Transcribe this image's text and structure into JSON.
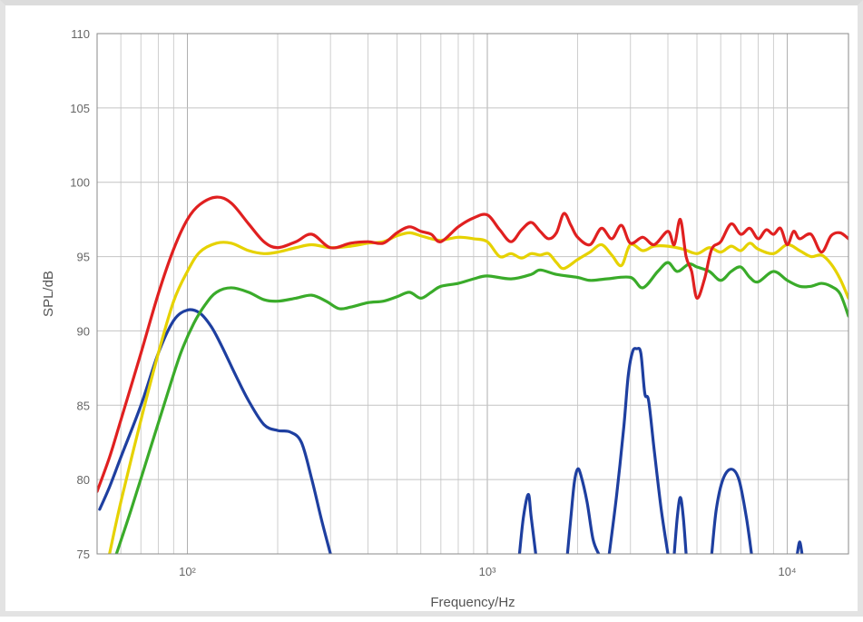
{
  "chart_data": {
    "type": "line",
    "title": "",
    "xlabel": "Frequency/Hz",
    "ylabel": "SPL/dB",
    "x_scale": "log",
    "xlim": [
      50,
      16000
    ],
    "ylim": [
      75,
      110
    ],
    "y_ticks": [
      75,
      80,
      85,
      90,
      95,
      100,
      105,
      110
    ],
    "y_tick_labels": [
      "75",
      "80",
      "85",
      "90",
      "95",
      "100",
      "105",
      "110"
    ],
    "x_major_ticks": [
      100,
      1000,
      10000
    ],
    "x_tick_labels": [
      "10²",
      "10³",
      "10⁴"
    ],
    "grid": true,
    "legend": "none",
    "series": [
      {
        "color": "#e02020",
        "points": [
          [
            50,
            79.2
          ],
          [
            55,
            81.5
          ],
          [
            60,
            84
          ],
          [
            70,
            88.5
          ],
          [
            80,
            92.5
          ],
          [
            90,
            95.5
          ],
          [
            100,
            97.5
          ],
          [
            110,
            98.5
          ],
          [
            125,
            99
          ],
          [
            140,
            98.6
          ],
          [
            160,
            97.2
          ],
          [
            180,
            96
          ],
          [
            200,
            95.6
          ],
          [
            230,
            96
          ],
          [
            260,
            96.5
          ],
          [
            300,
            95.6
          ],
          [
            350,
            95.9
          ],
          [
            400,
            96
          ],
          [
            450,
            95.9
          ],
          [
            500,
            96.6
          ],
          [
            550,
            97
          ],
          [
            600,
            96.7
          ],
          [
            650,
            96.5
          ],
          [
            700,
            96
          ],
          [
            800,
            97
          ],
          [
            900,
            97.6
          ],
          [
            1000,
            97.8
          ],
          [
            1100,
            96.8
          ],
          [
            1200,
            96
          ],
          [
            1300,
            96.8
          ],
          [
            1400,
            97.3
          ],
          [
            1500,
            96.7
          ],
          [
            1600,
            96.2
          ],
          [
            1700,
            96.6
          ],
          [
            1800,
            97.9
          ],
          [
            1900,
            97.1
          ],
          [
            2000,
            96.3
          ],
          [
            2200,
            95.8
          ],
          [
            2400,
            96.9
          ],
          [
            2600,
            96.2
          ],
          [
            2800,
            97.1
          ],
          [
            3000,
            95.9
          ],
          [
            3300,
            96.3
          ],
          [
            3600,
            95.8
          ],
          [
            4000,
            96.7
          ],
          [
            4200,
            95.8
          ],
          [
            4400,
            97.5
          ],
          [
            4600,
            95
          ],
          [
            4800,
            94
          ],
          [
            5000,
            92.2
          ],
          [
            5300,
            93.5
          ],
          [
            5600,
            95.5
          ],
          [
            6000,
            96
          ],
          [
            6500,
            97.2
          ],
          [
            7000,
            96.5
          ],
          [
            7500,
            96.9
          ],
          [
            8000,
            96.2
          ],
          [
            8500,
            96.8
          ],
          [
            9000,
            96.5
          ],
          [
            9500,
            96.9
          ],
          [
            10000,
            95.8
          ],
          [
            10500,
            96.7
          ],
          [
            11000,
            96.2
          ],
          [
            12000,
            96.5
          ],
          [
            13000,
            95.3
          ],
          [
            14000,
            96.4
          ],
          [
            15000,
            96.6
          ],
          [
            16000,
            96.2
          ]
        ]
      },
      {
        "color": "#e6d200",
        "points": [
          [
            55,
            75
          ],
          [
            60,
            78.5
          ],
          [
            70,
            84
          ],
          [
            80,
            88.5
          ],
          [
            90,
            92
          ],
          [
            100,
            94
          ],
          [
            110,
            95.3
          ],
          [
            125,
            95.9
          ],
          [
            140,
            95.9
          ],
          [
            160,
            95.4
          ],
          [
            180,
            95.2
          ],
          [
            200,
            95.3
          ],
          [
            230,
            95.6
          ],
          [
            260,
            95.8
          ],
          [
            300,
            95.6
          ],
          [
            350,
            95.7
          ],
          [
            400,
            95.9
          ],
          [
            450,
            96
          ],
          [
            500,
            96.4
          ],
          [
            550,
            96.6
          ],
          [
            600,
            96.4
          ],
          [
            650,
            96.2
          ],
          [
            700,
            96.1
          ],
          [
            800,
            96.3
          ],
          [
            900,
            96.2
          ],
          [
            1000,
            96
          ],
          [
            1100,
            95
          ],
          [
            1200,
            95.2
          ],
          [
            1300,
            94.9
          ],
          [
            1400,
            95.2
          ],
          [
            1500,
            95.1
          ],
          [
            1600,
            95.2
          ],
          [
            1700,
            94.6
          ],
          [
            1800,
            94.2
          ],
          [
            2000,
            94.8
          ],
          [
            2200,
            95.3
          ],
          [
            2400,
            95.8
          ],
          [
            2600,
            95.1
          ],
          [
            2800,
            94.4
          ],
          [
            3000,
            95.8
          ],
          [
            3300,
            95.4
          ],
          [
            3600,
            95.7
          ],
          [
            4000,
            95.7
          ],
          [
            4500,
            95.5
          ],
          [
            5000,
            95.2
          ],
          [
            5500,
            95.6
          ],
          [
            6000,
            95.3
          ],
          [
            6500,
            95.7
          ],
          [
            7000,
            95.4
          ],
          [
            7500,
            95.9
          ],
          [
            8000,
            95.5
          ],
          [
            9000,
            95.2
          ],
          [
            10000,
            95.8
          ],
          [
            11000,
            95.4
          ],
          [
            12000,
            95
          ],
          [
            13000,
            95.1
          ],
          [
            14000,
            94.5
          ],
          [
            15000,
            93.5
          ],
          [
            16000,
            92.2
          ]
        ]
      },
      {
        "color": "#3aab2a",
        "points": [
          [
            58,
            75
          ],
          [
            65,
            78
          ],
          [
            75,
            82
          ],
          [
            85,
            85.5
          ],
          [
            95,
            88.5
          ],
          [
            105,
            90.5
          ],
          [
            115,
            91.8
          ],
          [
            125,
            92.6
          ],
          [
            140,
            92.9
          ],
          [
            160,
            92.6
          ],
          [
            180,
            92.1
          ],
          [
            200,
            92
          ],
          [
            230,
            92.2
          ],
          [
            260,
            92.4
          ],
          [
            290,
            92
          ],
          [
            320,
            91.5
          ],
          [
            350,
            91.6
          ],
          [
            400,
            91.9
          ],
          [
            450,
            92
          ],
          [
            500,
            92.3
          ],
          [
            550,
            92.6
          ],
          [
            600,
            92.2
          ],
          [
            650,
            92.6
          ],
          [
            700,
            93
          ],
          [
            800,
            93.2
          ],
          [
            900,
            93.5
          ],
          [
            1000,
            93.7
          ],
          [
            1200,
            93.5
          ],
          [
            1400,
            93.8
          ],
          [
            1500,
            94.1
          ],
          [
            1700,
            93.8
          ],
          [
            2000,
            93.6
          ],
          [
            2200,
            93.4
          ],
          [
            2500,
            93.5
          ],
          [
            3000,
            93.6
          ],
          [
            3300,
            92.9
          ],
          [
            3700,
            94
          ],
          [
            4000,
            94.6
          ],
          [
            4300,
            94
          ],
          [
            4700,
            94.5
          ],
          [
            5000,
            94.3
          ],
          [
            5500,
            94
          ],
          [
            6000,
            93.4
          ],
          [
            6500,
            94
          ],
          [
            7000,
            94.3
          ],
          [
            7500,
            93.6
          ],
          [
            8000,
            93.3
          ],
          [
            9000,
            94
          ],
          [
            10000,
            93.4
          ],
          [
            11000,
            93
          ],
          [
            12000,
            93
          ],
          [
            13000,
            93.2
          ],
          [
            14000,
            93
          ],
          [
            15000,
            92.5
          ],
          [
            16000,
            91
          ]
        ]
      },
      {
        "color": "#1e3fa0",
        "points": [
          [
            51,
            78
          ],
          [
            55,
            79.5
          ],
          [
            60,
            81.5
          ],
          [
            70,
            85
          ],
          [
            80,
            88.5
          ],
          [
            90,
            90.7
          ],
          [
            100,
            91.4
          ],
          [
            110,
            91.2
          ],
          [
            120,
            90.3
          ],
          [
            130,
            89
          ],
          [
            145,
            87
          ],
          [
            160,
            85.3
          ],
          [
            180,
            83.7
          ],
          [
            200,
            83.3
          ],
          [
            220,
            83.2
          ],
          [
            240,
            82.5
          ],
          [
            260,
            80
          ],
          [
            280,
            77.3
          ],
          [
            300,
            75
          ]
        ]
      },
      {
        "color": "#1e3fa0",
        "points": [
          [
            1280,
            75
          ],
          [
            1320,
            77.5
          ],
          [
            1370,
            79
          ],
          [
            1400,
            77.5
          ],
          [
            1450,
            75
          ]
        ]
      },
      {
        "color": "#1e3fa0",
        "points": [
          [
            1850,
            75
          ],
          [
            1900,
            77.5
          ],
          [
            1950,
            79.8
          ],
          [
            2000,
            80.7
          ],
          [
            2050,
            80.3
          ],
          [
            2150,
            78.5
          ],
          [
            2250,
            76
          ],
          [
            2350,
            75
          ]
        ]
      },
      {
        "color": "#1e3fa0",
        "points": [
          [
            2550,
            75
          ],
          [
            2700,
            79
          ],
          [
            2850,
            83.5
          ],
          [
            2950,
            87
          ],
          [
            3050,
            88.6
          ],
          [
            3150,
            88.8
          ],
          [
            3250,
            88.5
          ],
          [
            3350,
            85.8
          ],
          [
            3450,
            85.3
          ],
          [
            3600,
            82
          ],
          [
            3800,
            78
          ],
          [
            4000,
            75
          ]
        ]
      },
      {
        "color": "#1e3fa0",
        "points": [
          [
            4200,
            75
          ],
          [
            4300,
            77.5
          ],
          [
            4400,
            78.8
          ],
          [
            4500,
            77.5
          ],
          [
            4600,
            75
          ]
        ]
      },
      {
        "color": "#1e3fa0",
        "points": [
          [
            5600,
            75
          ],
          [
            5800,
            78
          ],
          [
            6100,
            80
          ],
          [
            6500,
            80.7
          ],
          [
            6900,
            80
          ],
          [
            7300,
            77.5
          ],
          [
            7600,
            75
          ]
        ]
      },
      {
        "color": "#1e3fa0",
        "points": [
          [
            10800,
            75
          ],
          [
            11000,
            75.8
          ],
          [
            11200,
            75
          ]
        ]
      }
    ]
  }
}
